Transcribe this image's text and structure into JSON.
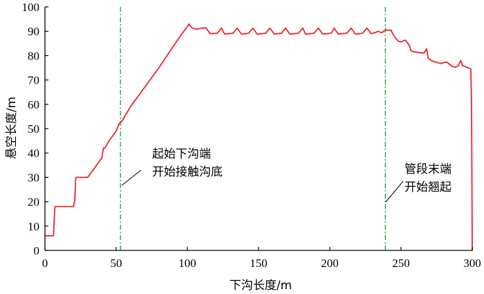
{
  "chart_data": {
    "type": "line",
    "xlabel": "下沟长度/m",
    "ylabel": "悬空长度/m",
    "xlim": [
      0,
      300
    ],
    "ylim": [
      0,
      100
    ],
    "xticks": [
      0,
      50,
      100,
      150,
      200,
      250,
      300
    ],
    "yticks": [
      0,
      10,
      20,
      30,
      40,
      50,
      60,
      70,
      80,
      90,
      100
    ],
    "grid": false,
    "series": [
      {
        "color": "#e8252a",
        "x": [
          0,
          6,
          6.5,
          7,
          20,
          21,
          21.5,
          22,
          30,
          40,
          41,
          42,
          45,
          50,
          52,
          54,
          56,
          60,
          70,
          80,
          88,
          95,
          100,
          101,
          103,
          106,
          110,
          113,
          116,
          121,
          124,
          126,
          129,
          132,
          135,
          138,
          141,
          143,
          146,
          149,
          152,
          155,
          158,
          161,
          163,
          166,
          169,
          172,
          175,
          178,
          181,
          183,
          186,
          189,
          192,
          195,
          198,
          201,
          203,
          206,
          209,
          212,
          215,
          218,
          221,
          223,
          226,
          229,
          232,
          234,
          236,
          237,
          238,
          240,
          243,
          245,
          248,
          250,
          253,
          256,
          257,
          259,
          262,
          266,
          268,
          269,
          271,
          274,
          278,
          282,
          286,
          288,
          290,
          292,
          293,
          295,
          297,
          298,
          299,
          299.5,
          300
        ],
        "y": [
          6,
          6,
          13,
          18,
          18,
          21,
          29,
          30,
          30,
          38,
          42,
          42,
          45,
          49,
          52,
          53,
          55,
          59,
          67,
          75,
          82,
          88,
          92,
          93,
          91.5,
          90.8,
          91.3,
          91.4,
          89,
          89.2,
          91.3,
          88.9,
          89,
          89.2,
          91.3,
          88.8,
          89,
          89.2,
          91.3,
          88.8,
          89,
          89.2,
          91.3,
          88.8,
          89,
          89.2,
          91.3,
          88.8,
          89,
          89.2,
          91.3,
          88.8,
          89,
          89.2,
          91.3,
          88.8,
          89,
          89.2,
          91.3,
          88.8,
          89,
          89.2,
          91.3,
          88.8,
          89,
          89.2,
          91.3,
          89,
          89.5,
          90,
          89.5,
          89.5,
          90.2,
          90.5,
          90.4,
          88,
          86,
          85.6,
          86.4,
          84,
          82,
          81.6,
          81.3,
          81,
          82.8,
          79,
          78,
          77.4,
          76.8,
          77.4,
          75.6,
          75.2,
          75.8,
          78,
          76,
          75.5,
          75,
          74.8,
          74.5,
          60,
          0
        ]
      }
    ],
    "reference_lines": [
      {
        "axis": "x",
        "value": 53,
        "color": "#1a9a3e"
      },
      {
        "axis": "x",
        "value": 239,
        "color": "#1a9a3e"
      }
    ],
    "annotations": [
      {
        "lines": [
          "起始下沟端",
          "开始接触沟底"
        ],
        "x": 53
      },
      {
        "lines": [
          "管段末端",
          "开始翘起"
        ],
        "x": 239
      }
    ]
  }
}
